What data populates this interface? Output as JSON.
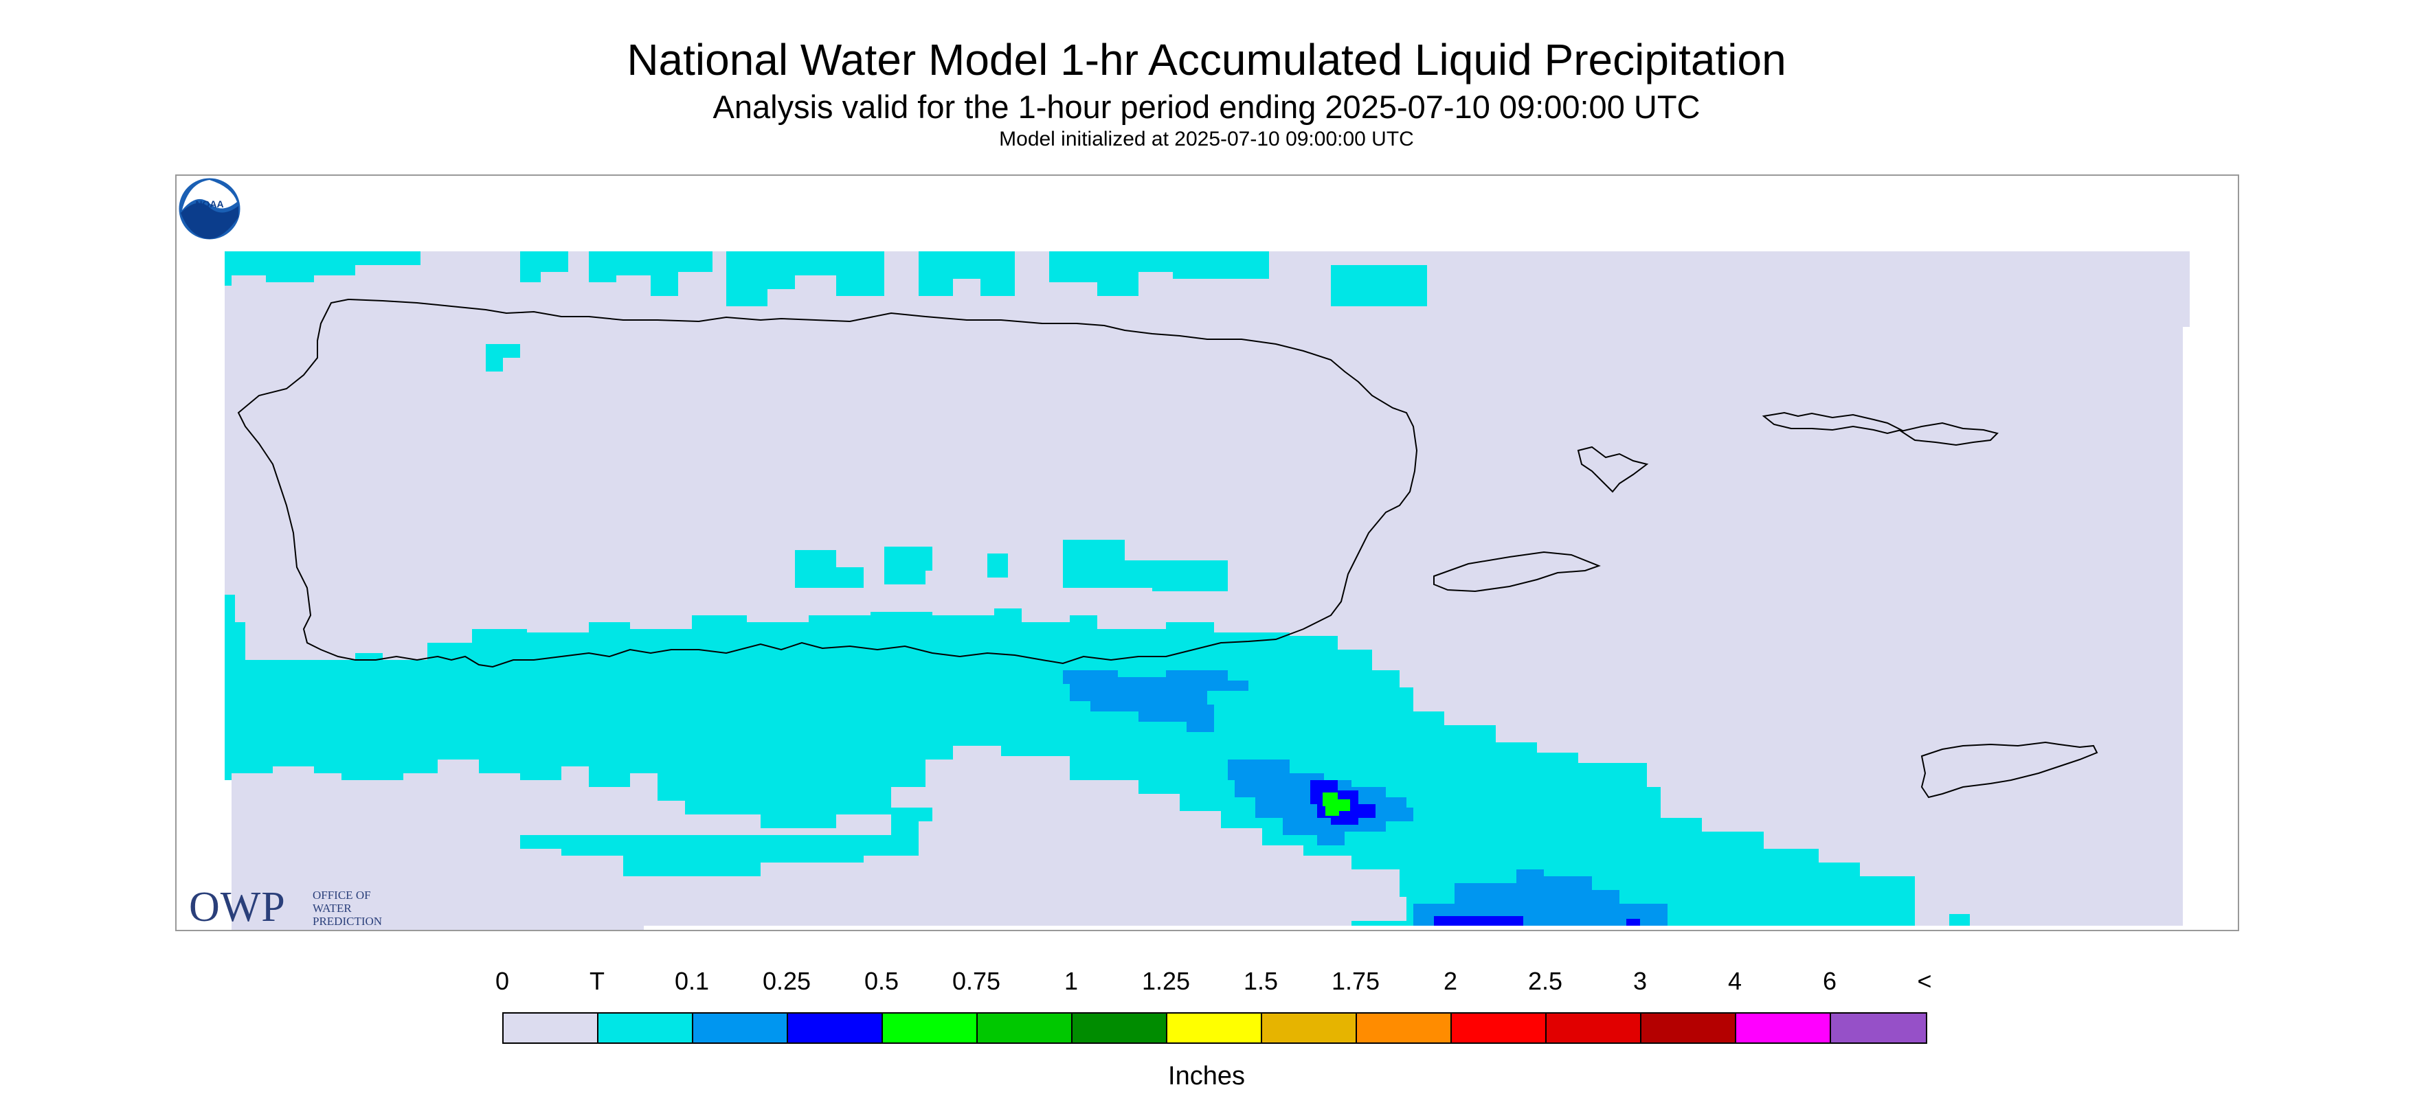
{
  "header": {
    "title": "National Water Model 1-hr Accumulated Liquid Precipitation",
    "subtitle": "Analysis valid for the 1-hour period ending 2025-07-10 09:00:00 UTC",
    "initialized": "Model initialized at 2025-07-10 09:00:00 UTC"
  },
  "logos": {
    "owp_mark": "OWP",
    "owp_name_lines": [
      "OFFICE OF",
      "WATER",
      "PREDICTION"
    ],
    "noaa": "NOAA"
  },
  "legend": {
    "units": "Inches",
    "tick_labels": [
      "0",
      "T",
      "0.1",
      "0.25",
      "0.5",
      "0.75",
      "1",
      "1.25",
      "1.5",
      "1.75",
      "2",
      "2.5",
      "3",
      "4",
      "6",
      "<"
    ],
    "colors": [
      "#dcdcef",
      "#00e6e6",
      "#0096f0",
      "#0000ff",
      "#00ff00",
      "#00c800",
      "#008c00",
      "#ffff00",
      "#e6b400",
      "#ff8c00",
      "#ff0000",
      "#e10000",
      "#b40000",
      "#ff00ff",
      "#9650c8"
    ]
  },
  "map": {
    "colors": {
      "background_no_data": "#ffffff",
      "zero": "#dcdcef",
      "trace": "#00e6e6",
      "light": "#0096f0",
      "moderate": "#0000ff",
      "heavy": "#00ff00",
      "outline": "#000000"
    },
    "regions": [
      "Puerto Rico",
      "Vieques",
      "Culebra",
      "St. Thomas",
      "St. John",
      "St. Croix"
    ]
  }
}
